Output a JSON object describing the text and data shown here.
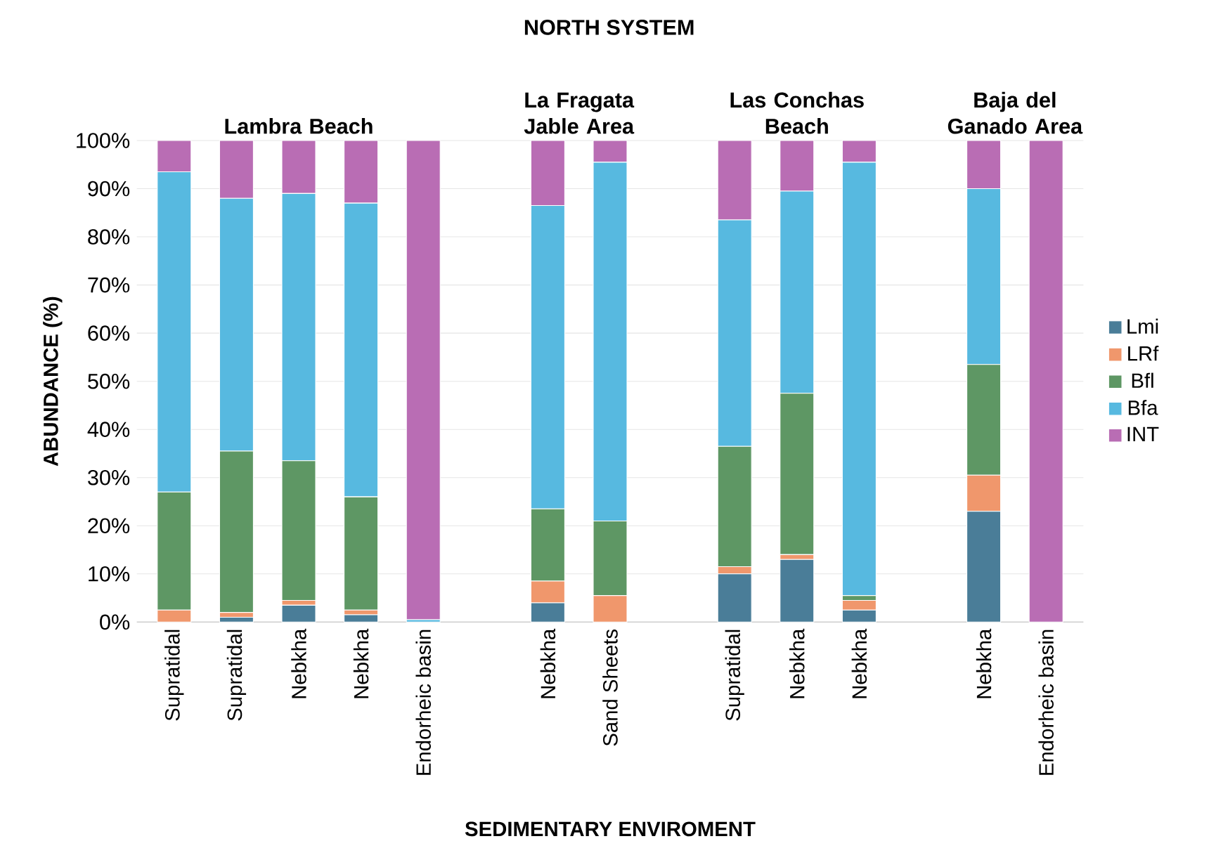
{
  "chart_data": {
    "type": "bar",
    "stacked": true,
    "title": "NORTH SYSTEM",
    "xlabel": "SEDIMENTARY ENVIROMENT",
    "ylabel": "ABUNDANCE (%)",
    "categories": [
      "Supratidal",
      "Supratidal",
      "Nebkha",
      "Nebkha",
      "Endorheic basin",
      null,
      "Nebkha",
      "Sand Sheets",
      null,
      "Supratidal",
      "Nebkha",
      "Nebkha",
      null,
      "Nebkha",
      "Endorheic basin"
    ],
    "series": [
      {
        "name": "Lmi",
        "color": "#4a7d98",
        "values": [
          0,
          1,
          3.5,
          1.5,
          0,
          null,
          4,
          0,
          null,
          10,
          13,
          2.5,
          null,
          23,
          0
        ]
      },
      {
        "name": "LRf",
        "color": "#f0976c",
        "values": [
          2.5,
          1,
          1,
          1,
          0,
          null,
          4.5,
          5.5,
          null,
          1.5,
          1,
          2,
          null,
          7.5,
          0
        ]
      },
      {
        "name": "Bfl",
        "color": "#5e9764",
        "values": [
          24.5,
          33.5,
          29,
          23.5,
          0,
          null,
          15,
          15.5,
          null,
          25,
          33.5,
          1,
          null,
          23,
          0
        ]
      },
      {
        "name": "Bfa",
        "color": "#57b9e0",
        "values": [
          66.5,
          52.5,
          55.5,
          61,
          0.5,
          null,
          63,
          74.5,
          null,
          47,
          42,
          90,
          null,
          36.5,
          0
        ]
      },
      {
        "name": "INT",
        "color": "#b96db4",
        "values": [
          6.5,
          12,
          11,
          13,
          99.5,
          null,
          13.5,
          4.5,
          null,
          16.5,
          10.5,
          4.5,
          null,
          10,
          100
        ]
      }
    ],
    "ylim": [
      0,
      100
    ],
    "yticks": [
      {
        "value": 0,
        "label": "0%"
      },
      {
        "value": 10,
        "label": "10%"
      },
      {
        "value": 20,
        "label": "20%"
      },
      {
        "value": 30,
        "label": "30%"
      },
      {
        "value": 40,
        "label": "40%"
      },
      {
        "value": 50,
        "label": "50%"
      },
      {
        "value": 60,
        "label": "60%"
      },
      {
        "value": 70,
        "label": "70%"
      },
      {
        "value": 80,
        "label": "80%"
      },
      {
        "value": 90,
        "label": "90%"
      },
      {
        "value": 100,
        "label": "100%"
      }
    ],
    "grid": "y",
    "legend": "right",
    "annotations": [
      "Lambra  Beach",
      "La Fragata Jable Area",
      "Las Conchas Beach",
      "Baja del Ganado Area"
    ]
  }
}
